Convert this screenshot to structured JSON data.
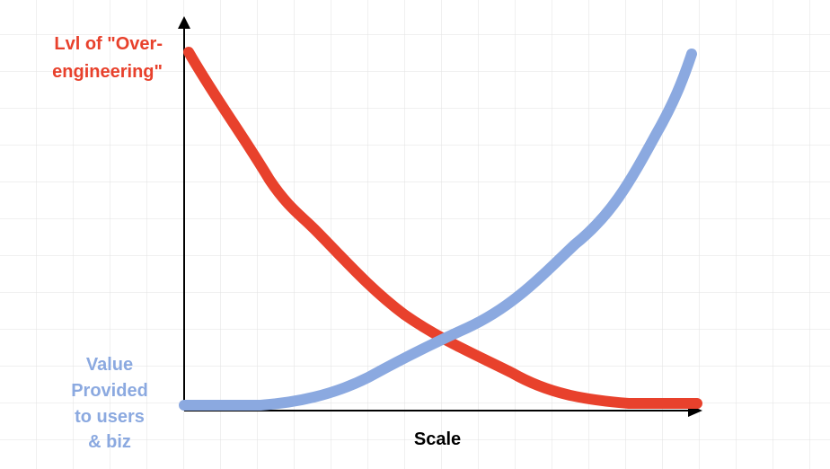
{
  "y_axis_label": {
    "lines": [
      "Lvl of \"Over-",
      "engineering\""
    ]
  },
  "value_label": {
    "lines": [
      "Value",
      "Provided",
      "to users",
      "& biz"
    ]
  },
  "x_axis_label": "Scale"
}
